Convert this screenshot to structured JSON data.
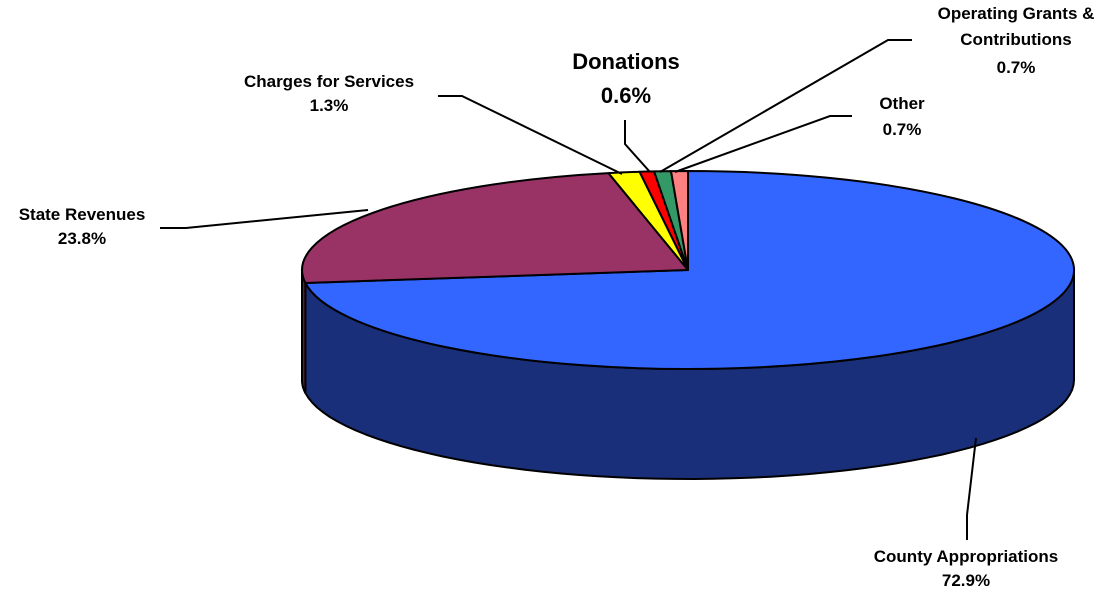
{
  "chart_data": {
    "type": "pie",
    "style": "3d",
    "slices": [
      {
        "label": "County Appropriations",
        "value": 72.9,
        "value_label": "72.9%",
        "color": "#3366FF",
        "side_color": "#1A2F7A"
      },
      {
        "label": "State Revenues",
        "value": 23.8,
        "value_label": "23.8%",
        "color": "#993366",
        "side_color": "#5C1F3D"
      },
      {
        "label": "Charges for Services",
        "value": 1.3,
        "value_label": "1.3%",
        "color": "#FFFF00",
        "side_color": "#999900"
      },
      {
        "label": "Donations",
        "value": 0.6,
        "value_label": "0.6%",
        "color": "#FF0000",
        "side_color": "#990000"
      },
      {
        "label": "Operating Grants &",
        "label_line2": "Contributions",
        "value": 0.7,
        "value_label": "0.7%",
        "color": "#339966",
        "side_color": "#1F5C3D"
      },
      {
        "label": "Other",
        "value": 0.7,
        "value_label": "0.7%",
        "color": "#FF8080",
        "side_color": "#994D4D"
      }
    ]
  }
}
